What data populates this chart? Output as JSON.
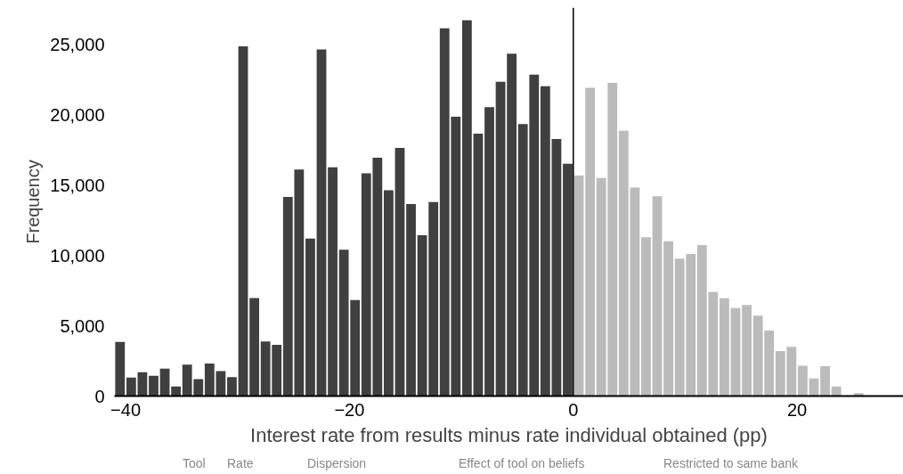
{
  "chart_data": {
    "type": "histogram",
    "xlabel": "Interest rate from results minus rate individual obtained (pp)",
    "ylabel": "Frequency",
    "bins": [
      -41,
      -40,
      -39,
      -38,
      -37,
      -36,
      -35,
      -34,
      -33,
      -32,
      -31,
      -30,
      -29,
      -28,
      -27,
      -26,
      -25,
      -24,
      -23,
      -22,
      -21,
      -20,
      -19,
      -18,
      -17,
      -16,
      -15,
      -14,
      -13,
      -12,
      -11,
      -10,
      -9,
      -8,
      -7,
      -6,
      -5,
      -4,
      -3,
      -2,
      -1,
      0,
      1,
      2,
      3,
      4,
      5,
      6,
      7,
      8,
      9,
      10,
      11,
      12,
      13,
      14,
      15,
      16,
      17,
      18,
      19,
      20,
      21,
      22,
      23,
      24,
      25,
      26
    ],
    "values": [
      3850,
      1320,
      1700,
      1440,
      1950,
      680,
      2230,
      1210,
      2310,
      1780,
      1340,
      24840,
      6970,
      3870,
      3640,
      14150,
      16090,
      11190,
      24630,
      16250,
      10390,
      6820,
      15830,
      16930,
      14630,
      17630,
      13640,
      11420,
      13790,
      26130,
      19840,
      26700,
      18640,
      20520,
      22330,
      24320,
      19320,
      22840,
      22010,
      18260,
      16510,
      15660,
      21900,
      15500,
      22250,
      18850,
      14820,
      11280,
      14190,
      11000,
      9760,
      10100,
      10730,
      7390,
      6950,
      6250,
      6470,
      5710,
      4650,
      3200,
      3490,
      2160,
      1250,
      2120,
      680,
      0,
      200
    ],
    "colors": [
      "#404040",
      "#404040",
      "#404040",
      "#404040",
      "#404040",
      "#404040",
      "#404040",
      "#404040",
      "#404040",
      "#404040",
      "#404040",
      "#404040",
      "#404040",
      "#404040",
      "#404040",
      "#404040",
      "#404040",
      "#404040",
      "#404040",
      "#404040",
      "#404040",
      "#404040",
      "#404040",
      "#404040",
      "#404040",
      "#404040",
      "#404040",
      "#404040",
      "#404040",
      "#404040",
      "#404040",
      "#404040",
      "#404040",
      "#404040",
      "#404040",
      "#404040",
      "#404040",
      "#404040",
      "#404040",
      "#404040",
      "#404040",
      "#bbbbbb",
      "#bbbbbb",
      "#bbbbbb",
      "#bbbbbb",
      "#bbbbbb",
      "#bbbbbb",
      "#bbbbbb",
      "#bbbbbb",
      "#bbbbbb",
      "#bbbbbb",
      "#bbbbbb",
      "#bbbbbb",
      "#bbbbbb",
      "#bbbbbb",
      "#bbbbbb",
      "#bbbbbb",
      "#bbbbbb",
      "#bbbbbb",
      "#bbbbbb",
      "#bbbbbb",
      "#bbbbbb",
      "#bbbbbb",
      "#bbbbbb",
      "#bbbbbb",
      "#bbbbbb",
      "#bbbbbb"
    ],
    "xlim": [
      -41,
      29.5
    ],
    "xticks": [
      {
        "value": -40,
        "label": "−40"
      },
      {
        "value": -20,
        "label": "−20"
      },
      0,
      20
    ],
    "ylim": [
      0,
      27600
    ],
    "yticks": [
      0,
      {
        "value": 5000,
        "label": "5,000"
      },
      {
        "value": 10000,
        "label": "10,000"
      },
      {
        "value": 15000,
        "label": "15,000"
      },
      {
        "value": 20000,
        "label": "20,000"
      },
      {
        "value": 25000,
        "label": "25,000"
      }
    ],
    "ref_lines": [
      {
        "axis": "x",
        "value": 0,
        "color": "#000000"
      }
    ],
    "grid": false,
    "annotations": [
      "Tool",
      "Rate",
      "Dispersion",
      "Effect of tool on beliefs",
      "Restricted to same bank"
    ]
  }
}
